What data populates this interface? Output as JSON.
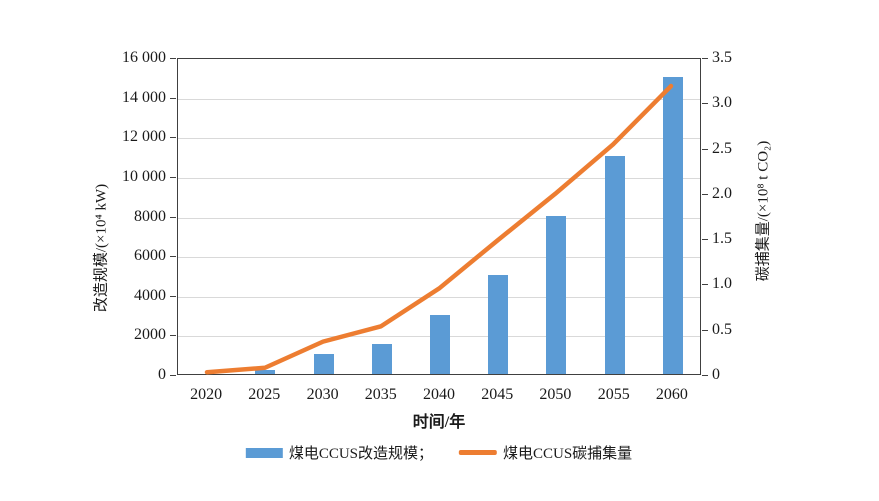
{
  "chart_data": {
    "type": "combo",
    "categories": [
      "2020",
      "2025",
      "2030",
      "2035",
      "2040",
      "2045",
      "2050",
      "2055",
      "2060"
    ],
    "series": [
      {
        "name": "煤电CCUS改造规模",
        "type": "bar",
        "axis": "left",
        "color": "#5b9bd5",
        "values": [
          0,
          200,
          1000,
          1500,
          3000,
          5000,
          8000,
          11000,
          15000
        ]
      },
      {
        "name": "煤电CCUS碳捕集量",
        "type": "line",
        "axis": "right",
        "color": "#ed7d31",
        "values": [
          0.02,
          0.07,
          0.36,
          0.53,
          0.95,
          1.48,
          2.0,
          2.55,
          3.2
        ]
      }
    ],
    "left_axis": {
      "title": "改造规模/(×10⁴ kW)",
      "min": 0,
      "max": 16000,
      "ticks": [
        "0",
        "2000",
        "4000",
        "6000",
        "8000",
        "10 000",
        "12 000",
        "14 000",
        "16 000"
      ]
    },
    "right_axis": {
      "title": "碳捕集量/(×10⁸ t CO₂)",
      "min": 0,
      "max": 3.5,
      "ticks": [
        "0",
        "0.5",
        "1.0",
        "1.5",
        "2.0",
        "2.5",
        "3.0",
        "3.5"
      ]
    },
    "x_axis": {
      "title": "时间/年"
    },
    "grid": true,
    "legend_position": "bottom",
    "colors": {
      "bar": "#5b9bd5",
      "line": "#ed7d31",
      "grid": "#d9d9d9",
      "axis": "#404040",
      "text": "#1a1a1a"
    }
  },
  "legend": {
    "bar_label": "煤电CCUS改造规模；",
    "line_label": "煤电CCUS碳捕集量"
  }
}
